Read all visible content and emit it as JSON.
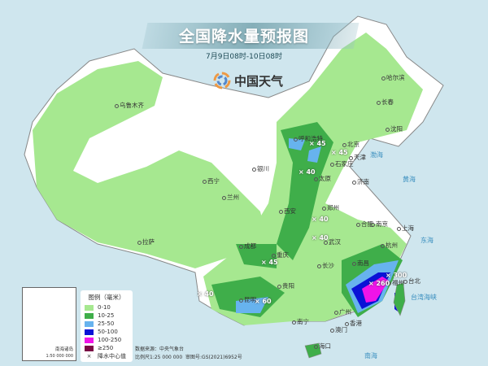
{
  "header": {
    "title": "全国降水量预报图",
    "subtitle": "7月9日08时-10日08时",
    "logo_text": "中国天气"
  },
  "legend": {
    "title": "图例（毫米）",
    "items": [
      {
        "label": "0-10",
        "color": "#a6e890"
      },
      {
        "label": "10-25",
        "color": "#3fae4a"
      },
      {
        "label": "25-50",
        "color": "#67b3ee"
      },
      {
        "label": "50-100",
        "color": "#0a12d6"
      },
      {
        "label": "100-250",
        "color": "#f014e8"
      },
      {
        "label": "≥250",
        "color": "#7a0a45"
      }
    ],
    "center_label": "降水中心值"
  },
  "source": {
    "data_source": "数据来源：中央气象台",
    "scale": "比例尺1:25 000 000",
    "review": "审图号:GS(2021)6952号"
  },
  "inset": {
    "name": "南海诸岛",
    "scale": "1:50 000 000"
  },
  "cities": [
    "哈尔滨",
    "长春",
    "沈阳",
    "乌鲁木齐",
    "西宁",
    "兰州",
    "银川",
    "拉萨",
    "呼和浩特",
    "北京",
    "天津",
    "石家庄",
    "太原",
    "济南",
    "郑州",
    "西安",
    "合肥",
    "南京",
    "上海",
    "杭州",
    "武汉",
    "成都",
    "重庆",
    "长沙",
    "南昌",
    "福州",
    "贵阳",
    "昆明",
    "南宁",
    "广州",
    "香港",
    "澳门",
    "海口",
    "台北"
  ],
  "seas": [
    "渤海",
    "黄海",
    "东海",
    "台湾海峡",
    "南海"
  ],
  "rain_centers": [
    "45",
    "45",
    "40",
    "40",
    "40",
    "45",
    "60",
    "40",
    "300",
    "260"
  ]
}
